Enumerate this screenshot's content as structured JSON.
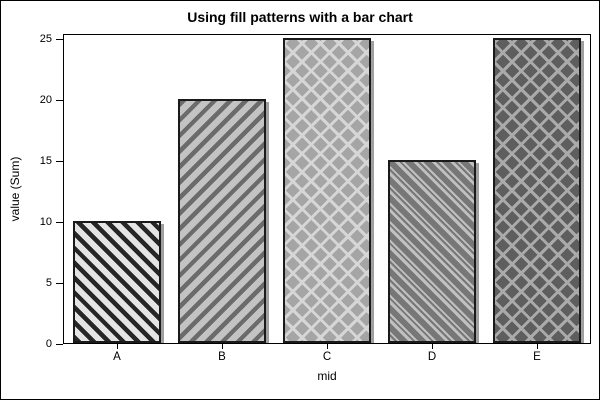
{
  "figure": {
    "background_color": "#ffffff",
    "frame_color": "#000000"
  },
  "chart_data": {
    "type": "bar",
    "title": "Using fill patterns with a bar chart",
    "xlabel": "mid",
    "ylabel": "value (Sum)",
    "categories": [
      "A",
      "B",
      "C",
      "D",
      "E"
    ],
    "values": [
      10,
      20,
      25,
      15,
      25
    ],
    "ylim": [
      0,
      25
    ],
    "yticks": [
      0,
      5,
      10,
      15,
      20,
      25
    ],
    "grid": false,
    "legend": false,
    "bar_border_color": "#1a1a1a",
    "bar_shadow_color": "#a0a0a0",
    "bar_patterns": [
      {
        "category": "A",
        "pattern": "diagonal-down-stripes",
        "stripe_color": "#262626",
        "background_color": "#e4e4e4"
      },
      {
        "category": "B",
        "pattern": "diagonal-up-stripes",
        "stripe_color": "#6b6b6b",
        "background_color": "#c3c3c3"
      },
      {
        "category": "C",
        "pattern": "diagonal-crosshatch-light",
        "stripe_color": "#d6d6d6",
        "background_color": "#a5a5a5"
      },
      {
        "category": "D",
        "pattern": "diagonal-down-double-stripes",
        "stripe_color": "#c0c0c0",
        "background_color": "#777777"
      },
      {
        "category": "E",
        "pattern": "diagonal-crosshatch-dark",
        "stripe_color": "#aaaaaa",
        "background_color": "#5e5e5e"
      }
    ]
  }
}
